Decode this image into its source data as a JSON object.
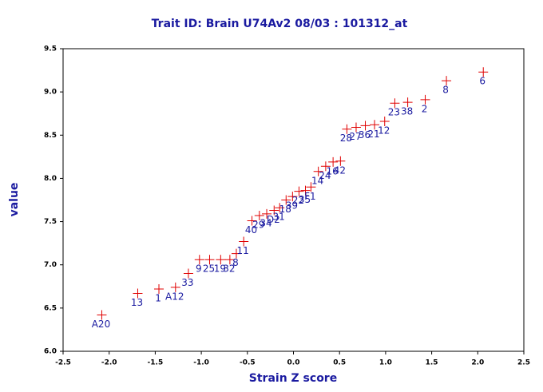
{
  "chart_data": {
    "type": "scatter",
    "title": "Trait ID: Brain U74Av2 08/03 : 101312_at",
    "x_label": "Strain Z score",
    "y_label": "value",
    "xlim": [
      -2.5,
      2.5
    ],
    "ylim": [
      6.0,
      9.5
    ],
    "xticks": [
      -2.5,
      {
        "value": -2.0,
        "label": "-2.0"
      },
      -1.5,
      {
        "value": -1.0,
        "label": "-1.0"
      },
      -0.5,
      {
        "value": 0.0,
        "label": "0.0"
      },
      0.5,
      {
        "value": 1.0,
        "label": "1.0"
      },
      1.5,
      {
        "value": 2.0,
        "label": "2.0"
      },
      2.5
    ],
    "yticks": [
      {
        "value": 6.0,
        "label": "6.0"
      },
      6.5,
      {
        "value": 7.0,
        "label": "7.0"
      },
      7.5,
      {
        "value": 8.0,
        "label": "8.0"
      },
      8.5,
      {
        "value": 9.0,
        "label": "9.0"
      },
      9.5
    ],
    "grid": false,
    "series": [
      {
        "color": "#e00000",
        "label_color": "#1a1aa0",
        "x": [
          -2.08,
          -1.69,
          -1.46,
          -1.28,
          -1.14,
          -1.02,
          -0.91,
          -0.79,
          -0.69,
          -0.62,
          -0.54,
          -0.45,
          -0.37,
          -0.29,
          -0.21,
          -0.15,
          -0.08,
          -0.01,
          0.06,
          0.13,
          0.19,
          0.27,
          0.35,
          0.43,
          0.51,
          0.58,
          0.68,
          0.78,
          0.88,
          0.99,
          1.1,
          1.24,
          1.43,
          1.66,
          2.06
        ],
        "values": [
          6.42,
          6.67,
          6.72,
          6.74,
          6.9,
          7.06,
          7.06,
          7.06,
          7.06,
          7.13,
          7.27,
          7.51,
          7.57,
          7.59,
          7.63,
          7.66,
          7.75,
          7.79,
          7.85,
          7.86,
          7.9,
          8.08,
          8.14,
          8.19,
          8.2,
          8.57,
          8.59,
          8.61,
          8.62,
          8.66,
          8.87,
          8.88,
          8.91,
          9.13,
          9.23
        ],
        "point_labels": [
          "A20",
          "13",
          "1",
          "A12",
          "33",
          "9",
          "25",
          "19",
          "32",
          "8",
          "11",
          "40",
          "29",
          "34",
          "D2",
          "31",
          "18",
          "39",
          "22",
          "35",
          "F1",
          "14",
          "24",
          "16",
          "42",
          "28",
          "27",
          "36",
          "21",
          "12",
          "23",
          "38",
          "2",
          "8",
          "6"
        ]
      }
    ]
  }
}
